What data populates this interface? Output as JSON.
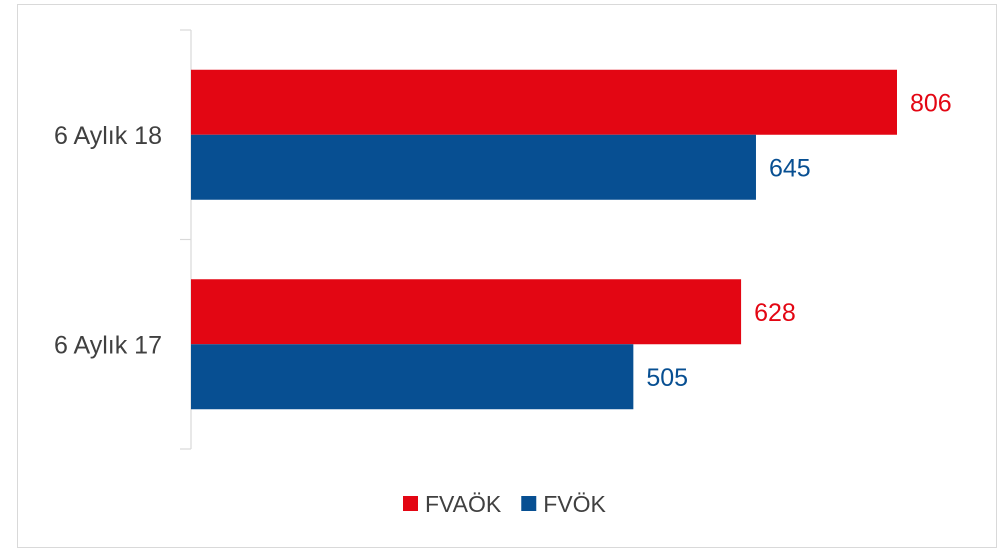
{
  "chart_data": {
    "type": "bar",
    "orientation": "horizontal",
    "categories": [
      "6 Aylık 18",
      "6 Aylık 17"
    ],
    "series": [
      {
        "name": "FVAÖK",
        "values": [
          806,
          628
        ],
        "color": "#e30613"
      },
      {
        "name": "FVÖK",
        "values": [
          645,
          505
        ],
        "color": "#074f92"
      }
    ],
    "title": "",
    "xlabel": "",
    "ylabel": "",
    "xlim": [
      0,
      806
    ],
    "grid": false,
    "data_labels": true,
    "legend_position": "bottom"
  }
}
